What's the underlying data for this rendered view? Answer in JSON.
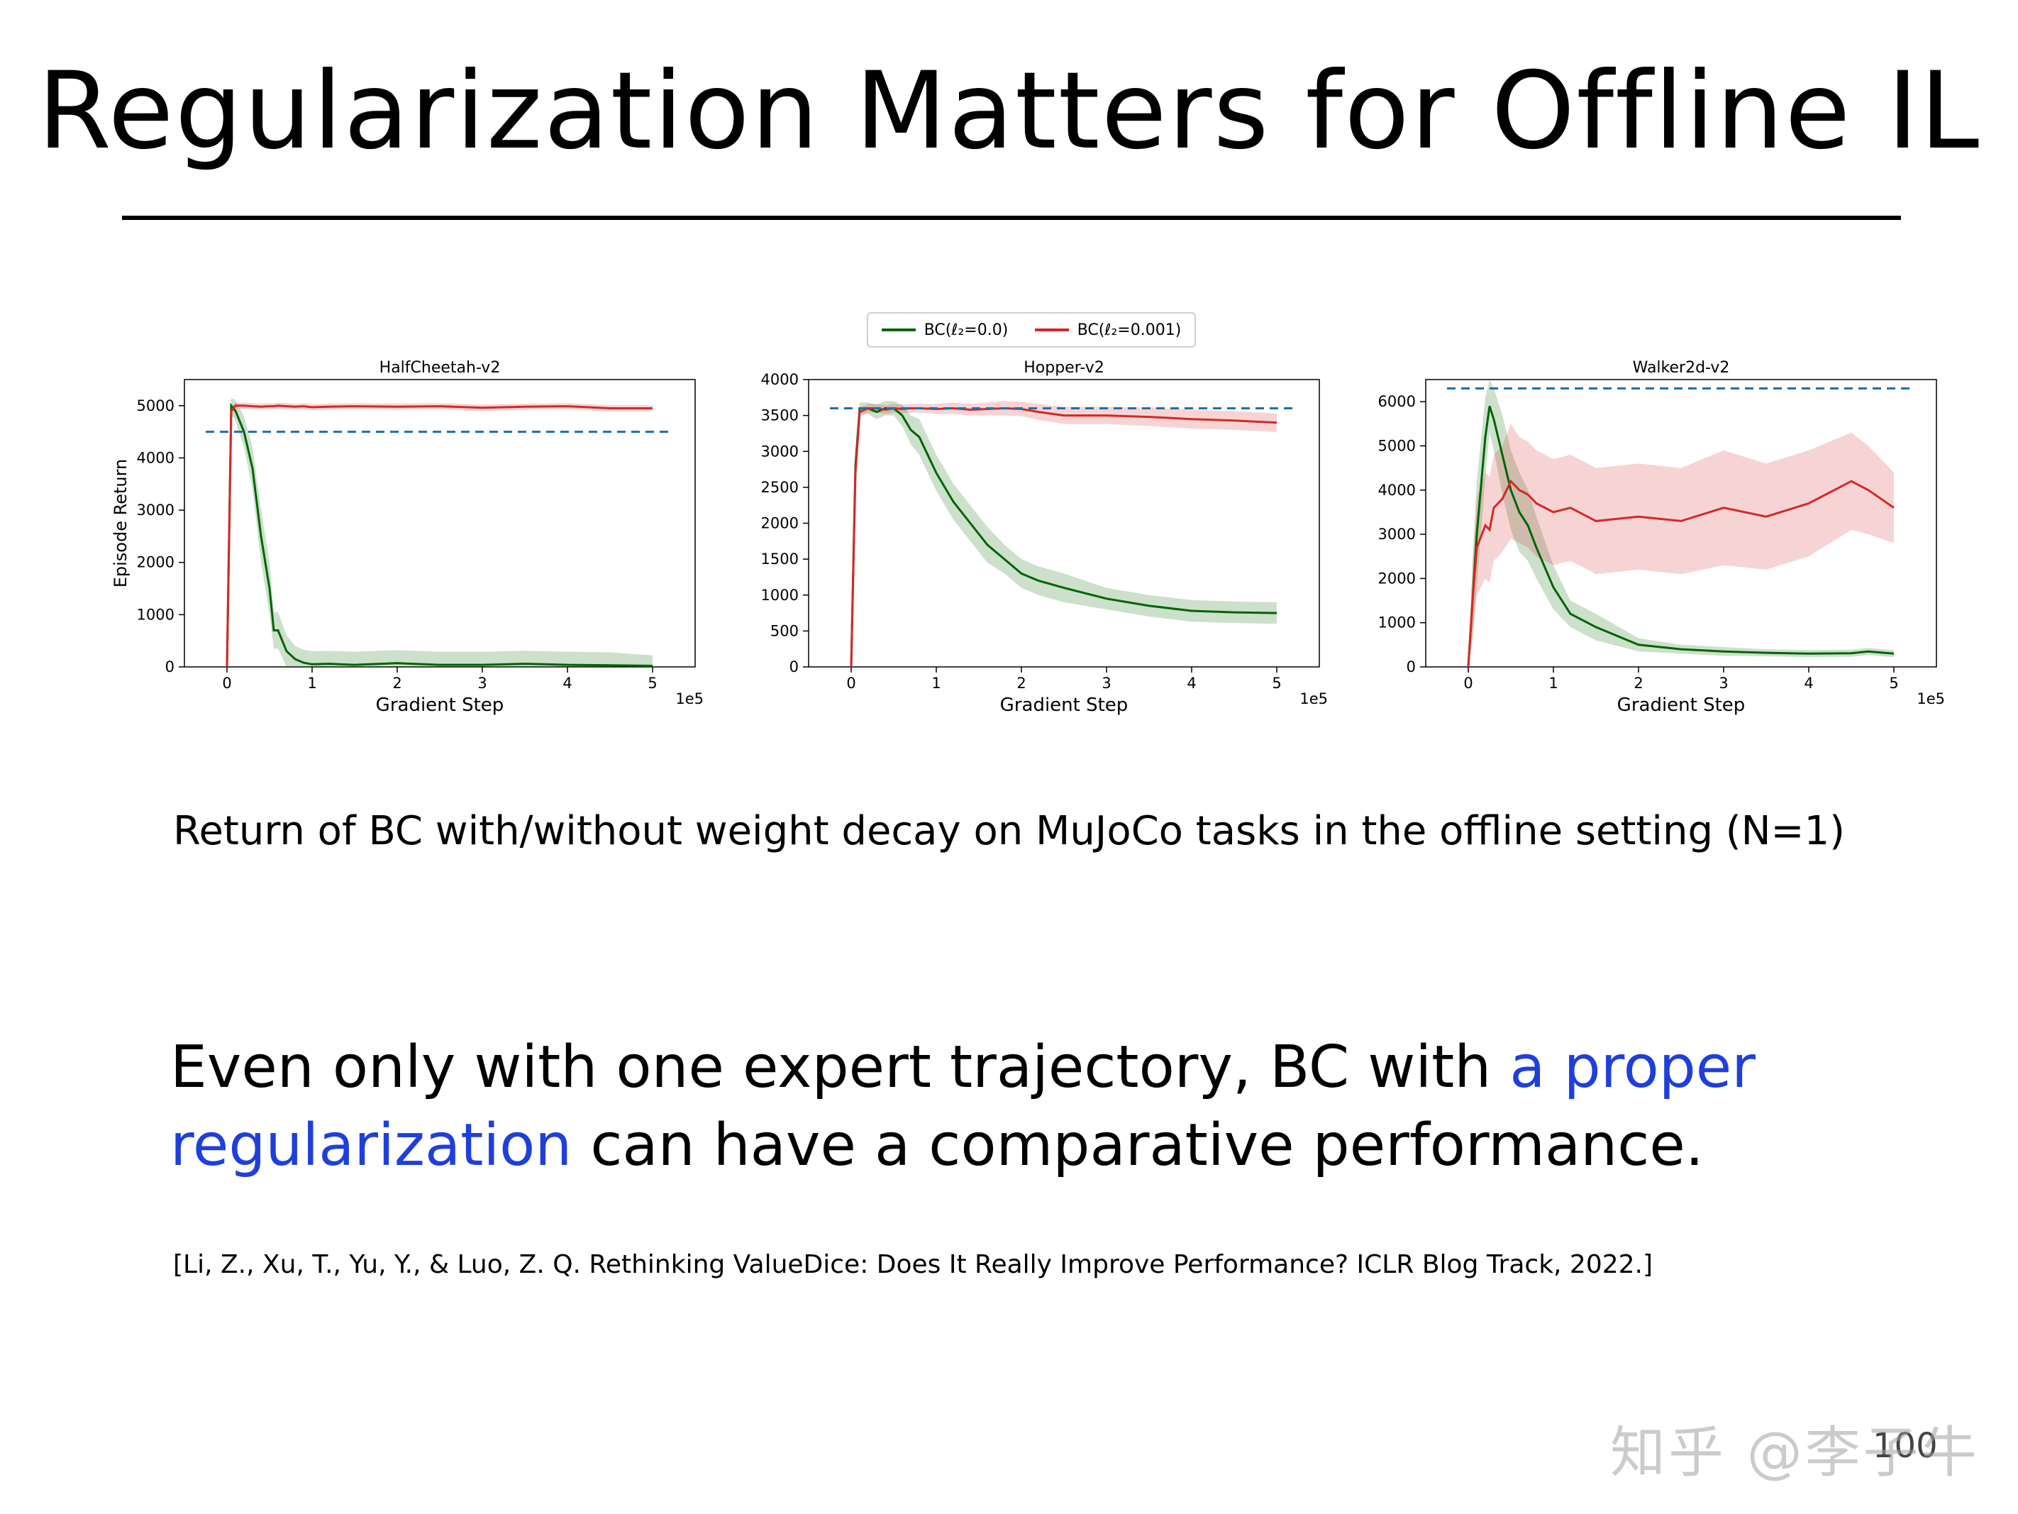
{
  "slide": {
    "title": "Regularization Matters for Offline IL",
    "caption": "Return of BC with/without weight decay on MuJoCo tasks in the offline setting (N=1)",
    "body_part1": "Even only with one expert trajectory, BC with ",
    "body_highlight1": "a proper",
    "body_highlight2": "regularization",
    "body_part2": " can have a comparative performance.",
    "citation": "[Li, Z.,  Xu, T., Yu, Y., & Luo, Z. Q. Rethinking ValueDice: Does It Really Improve Performance? ICLR Blog Track, 2022.]",
    "page_number": "100",
    "watermark": "知乎 @李子牛",
    "highlight_color": "#1f3fdc"
  },
  "legend": {
    "items": [
      {
        "label": "BC(ℓ₂=0.0)",
        "color": "#006400"
      },
      {
        "label": "BC(ℓ₂=0.001)",
        "color": "#d62728"
      }
    ]
  },
  "chart_data": [
    {
      "type": "line",
      "title": "HalfCheetah-v2",
      "xlabel": "Gradient Step",
      "ylabel": "Episode Return",
      "x_multiplier": "1e5",
      "xlim": [
        -0.5,
        5.5
      ],
      "ylim": [
        0,
        5500
      ],
      "xticks": [
        0,
        1,
        2,
        3,
        4,
        5
      ],
      "yticks": [
        0,
        1000,
        2000,
        3000,
        4000,
        5000
      ],
      "expert_line": 4500,
      "x": [
        0,
        0.05,
        0.1,
        0.2,
        0.3,
        0.4,
        0.5,
        0.55,
        0.6,
        0.7,
        0.8,
        0.9,
        1.0,
        1.2,
        1.5,
        2.0,
        2.5,
        3.0,
        3.5,
        4.0,
        4.5,
        5.0
      ],
      "series": [
        {
          "name": "BC(ℓ₂=0.0)",
          "color": "#006400",
          "values": [
            0,
            5000,
            4900,
            4500,
            3800,
            2500,
            1500,
            700,
            700,
            300,
            150,
            80,
            50,
            60,
            40,
            70,
            40,
            40,
            60,
            40,
            30,
            20
          ],
          "band": [
            0,
            150,
            200,
            300,
            400,
            500,
            500,
            350,
            350,
            300,
            250,
            250,
            250,
            250,
            250,
            250,
            250,
            250,
            250,
            250,
            250,
            200
          ]
        },
        {
          "name": "BC(ℓ₂=0.001)",
          "color": "#d62728",
          "values": [
            0,
            4900,
            5000,
            5000,
            4990,
            4980,
            4990,
            4990,
            5000,
            4990,
            4980,
            4990,
            4970,
            4980,
            4990,
            4980,
            4990,
            4960,
            4980,
            4990,
            4950,
            4950
          ],
          "band": [
            0,
            80,
            60,
            60,
            60,
            60,
            60,
            60,
            60,
            60,
            60,
            60,
            60,
            60,
            60,
            60,
            60,
            60,
            60,
            60,
            60,
            60
          ]
        }
      ]
    },
    {
      "type": "line",
      "title": "Hopper-v2",
      "xlabel": "Gradient Step",
      "ylabel": "",
      "x_multiplier": "1e5",
      "xlim": [
        -0.5,
        5.5
      ],
      "ylim": [
        0,
        4000
      ],
      "xticks": [
        0,
        1,
        2,
        3,
        4,
        5
      ],
      "yticks": [
        0,
        500,
        1000,
        1500,
        2000,
        2500,
        3000,
        3500,
        4000
      ],
      "expert_line": 3600,
      "x": [
        0,
        0.05,
        0.1,
        0.2,
        0.3,
        0.4,
        0.5,
        0.6,
        0.7,
        0.8,
        1.0,
        1.2,
        1.4,
        1.6,
        1.8,
        2.0,
        2.2,
        2.5,
        3.0,
        3.5,
        4.0,
        4.5,
        5.0
      ],
      "series": [
        {
          "name": "BC(ℓ₂=0.0)",
          "color": "#006400",
          "values": [
            0,
            2800,
            3600,
            3600,
            3550,
            3600,
            3600,
            3500,
            3300,
            3200,
            2700,
            2300,
            2000,
            1700,
            1500,
            1300,
            1200,
            1100,
            950,
            850,
            780,
            760,
            750
          ],
          "band": [
            0,
            200,
            80,
            80,
            100,
            100,
            100,
            150,
            200,
            250,
            250,
            250,
            250,
            250,
            200,
            200,
            200,
            200,
            150,
            150,
            150,
            150,
            150
          ]
        },
        {
          "name": "BC(ℓ₂=0.001)",
          "color": "#d62728",
          "values": [
            0,
            2700,
            3550,
            3600,
            3600,
            3580,
            3600,
            3590,
            3600,
            3600,
            3590,
            3600,
            3580,
            3590,
            3600,
            3590,
            3550,
            3500,
            3500,
            3480,
            3450,
            3430,
            3400
          ],
          "band": [
            0,
            200,
            60,
            60,
            60,
            60,
            60,
            60,
            60,
            60,
            70,
            80,
            80,
            90,
            100,
            100,
            110,
            120,
            120,
            130,
            130,
            130,
            130
          ]
        }
      ]
    },
    {
      "type": "line",
      "title": "Walker2d-v2",
      "xlabel": "Gradient Step",
      "ylabel": "",
      "x_multiplier": "1e5",
      "xlim": [
        -0.5,
        5.5
      ],
      "ylim": [
        0,
        6500
      ],
      "xticks": [
        0,
        1,
        2,
        3,
        4,
        5
      ],
      "yticks": [
        0,
        1000,
        2000,
        3000,
        4000,
        5000,
        6000
      ],
      "expert_line": 6300,
      "x": [
        0,
        0.05,
        0.1,
        0.2,
        0.25,
        0.3,
        0.4,
        0.5,
        0.6,
        0.7,
        0.8,
        1.0,
        1.2,
        1.5,
        2.0,
        2.5,
        3.0,
        3.5,
        4.0,
        4.5,
        4.7,
        5.0
      ],
      "series": [
        {
          "name": "BC(ℓ₂=0.0)",
          "color": "#006400",
          "values": [
            0,
            1500,
            3000,
            5200,
            5900,
            5600,
            4800,
            4000,
            3500,
            3200,
            2700,
            1800,
            1200,
            900,
            500,
            400,
            350,
            320,
            300,
            310,
            350,
            300
          ],
          "band": [
            0,
            800,
            1200,
            900,
            600,
            700,
            900,
            900,
            900,
            800,
            700,
            500,
            300,
            300,
            150,
            100,
            100,
            80,
            80,
            80,
            80,
            80
          ]
        },
        {
          "name": "BC(ℓ₂=0.001)",
          "color": "#d62728",
          "values": [
            0,
            1500,
            2700,
            3200,
            3100,
            3600,
            3800,
            4200,
            4000,
            3900,
            3700,
            3500,
            3600,
            3300,
            3400,
            3300,
            3600,
            3400,
            3700,
            4200,
            4000,
            3600
          ],
          "band": [
            0,
            900,
            1100,
            1200,
            1200,
            1200,
            1200,
            1300,
            1200,
            1200,
            1200,
            1200,
            1200,
            1200,
            1200,
            1200,
            1300,
            1200,
            1200,
            1100,
            1000,
            800
          ]
        }
      ]
    }
  ]
}
